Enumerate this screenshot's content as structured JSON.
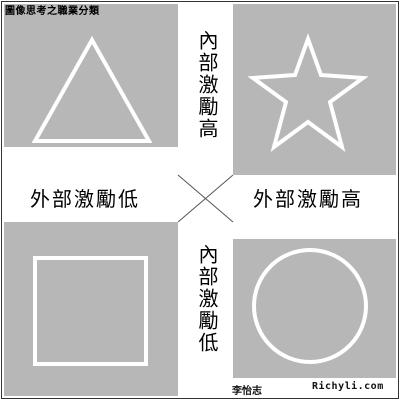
{
  "title": "圖像思考之職業分類",
  "axes": {
    "top": "內部激勵高",
    "bottom": "內部激勵低",
    "left": "外部激勵低",
    "right": "外部激勵高"
  },
  "shapes": {
    "top_left": "triangle-icon",
    "top_right": "star-icon",
    "bottom_left": "square-icon",
    "bottom_right": "circle-icon"
  },
  "footer": {
    "author": "李怡志",
    "site": "Richyli.com"
  },
  "colors": {
    "quadrant_fill": "#b7b7b7",
    "shape_stroke": "#ffffff",
    "band_fill": "#ffffff",
    "text": "#000000"
  }
}
